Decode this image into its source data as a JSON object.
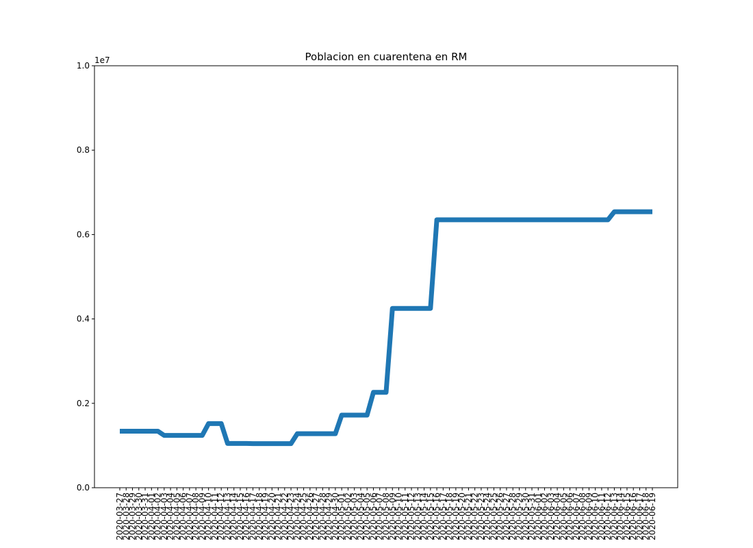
{
  "chart_data": {
    "type": "line",
    "title": "Poblacion en cuarentena en RM",
    "xlabel": "",
    "ylabel": "",
    "y_offset_text": "1e7",
    "ylim": [
      0,
      10000000
    ],
    "yticks": [
      0,
      2000000,
      4000000,
      6000000,
      8000000,
      10000000
    ],
    "ytick_labels": [
      "0.0",
      "0.2",
      "0.4",
      "0.6",
      "0.8",
      "1.0"
    ],
    "line_color": "#1f77b4",
    "grid": false,
    "x": [
      "2020-03-27",
      "2020-03-28",
      "2020-03-29",
      "2020-03-30",
      "2020-03-31",
      "2020-04-01",
      "2020-04-02",
      "2020-04-03",
      "2020-04-04",
      "2020-04-05",
      "2020-04-06",
      "2020-04-07",
      "2020-04-08",
      "2020-04-09",
      "2020-04-10",
      "2020-04-11",
      "2020-04-12",
      "2020-04-13",
      "2020-04-14",
      "2020-04-15",
      "2020-04-16",
      "2020-04-17",
      "2020-04-18",
      "2020-04-19",
      "2020-04-20",
      "2020-04-21",
      "2020-04-22",
      "2020-04-23",
      "2020-04-24",
      "2020-04-25",
      "2020-04-26",
      "2020-04-27",
      "2020-04-28",
      "2020-04-29",
      "2020-04-30",
      "2020-05-01",
      "2020-05-02",
      "2020-05-03",
      "2020-05-04",
      "2020-05-05",
      "2020-05-06",
      "2020-05-07",
      "2020-05-08",
      "2020-05-09",
      "2020-05-10",
      "2020-05-11",
      "2020-05-12",
      "2020-05-13",
      "2020-05-14",
      "2020-05-15",
      "2020-05-16",
      "2020-05-17",
      "2020-05-18",
      "2020-05-19",
      "2020-05-20",
      "2020-05-21",
      "2020-05-22",
      "2020-05-23",
      "2020-05-24",
      "2020-05-25",
      "2020-05-26",
      "2020-05-27",
      "2020-05-28",
      "2020-05-29",
      "2020-05-30",
      "2020-05-31",
      "2020-06-01",
      "2020-06-02",
      "2020-06-03",
      "2020-06-04",
      "2020-06-05",
      "2020-06-06",
      "2020-06-07",
      "2020-06-08",
      "2020-06-09",
      "2020-06-10",
      "2020-06-11",
      "2020-06-12",
      "2020-06-13",
      "2020-06-14",
      "2020-06-15",
      "2020-06-16",
      "2020-06-17",
      "2020-06-18",
      "2020-06-19"
    ],
    "series": [
      {
        "values": [
          1340000,
          1340000,
          1340000,
          1340000,
          1340000,
          1340000,
          1340000,
          1240000,
          1240000,
          1240000,
          1240000,
          1240000,
          1240000,
          1240000,
          1520000,
          1520000,
          1520000,
          1050000,
          1050000,
          1050000,
          1050000,
          1045000,
          1045000,
          1045000,
          1045000,
          1045000,
          1045000,
          1045000,
          1280000,
          1280000,
          1280000,
          1280000,
          1280000,
          1280000,
          1280000,
          1720000,
          1720000,
          1720000,
          1720000,
          1720000,
          2260000,
          2260000,
          2260000,
          4250000,
          4250000,
          4250000,
          4250000,
          4250000,
          4250000,
          4250000,
          6350000,
          6350000,
          6350000,
          6350000,
          6350000,
          6350000,
          6350000,
          6350000,
          6350000,
          6350000,
          6350000,
          6350000,
          6350000,
          6350000,
          6350000,
          6350000,
          6350000,
          6350000,
          6350000,
          6350000,
          6350000,
          6350000,
          6350000,
          6350000,
          6350000,
          6350000,
          6350000,
          6350000,
          6540000,
          6540000,
          6540000,
          6540000,
          6540000,
          6540000,
          6540000
        ]
      }
    ]
  }
}
